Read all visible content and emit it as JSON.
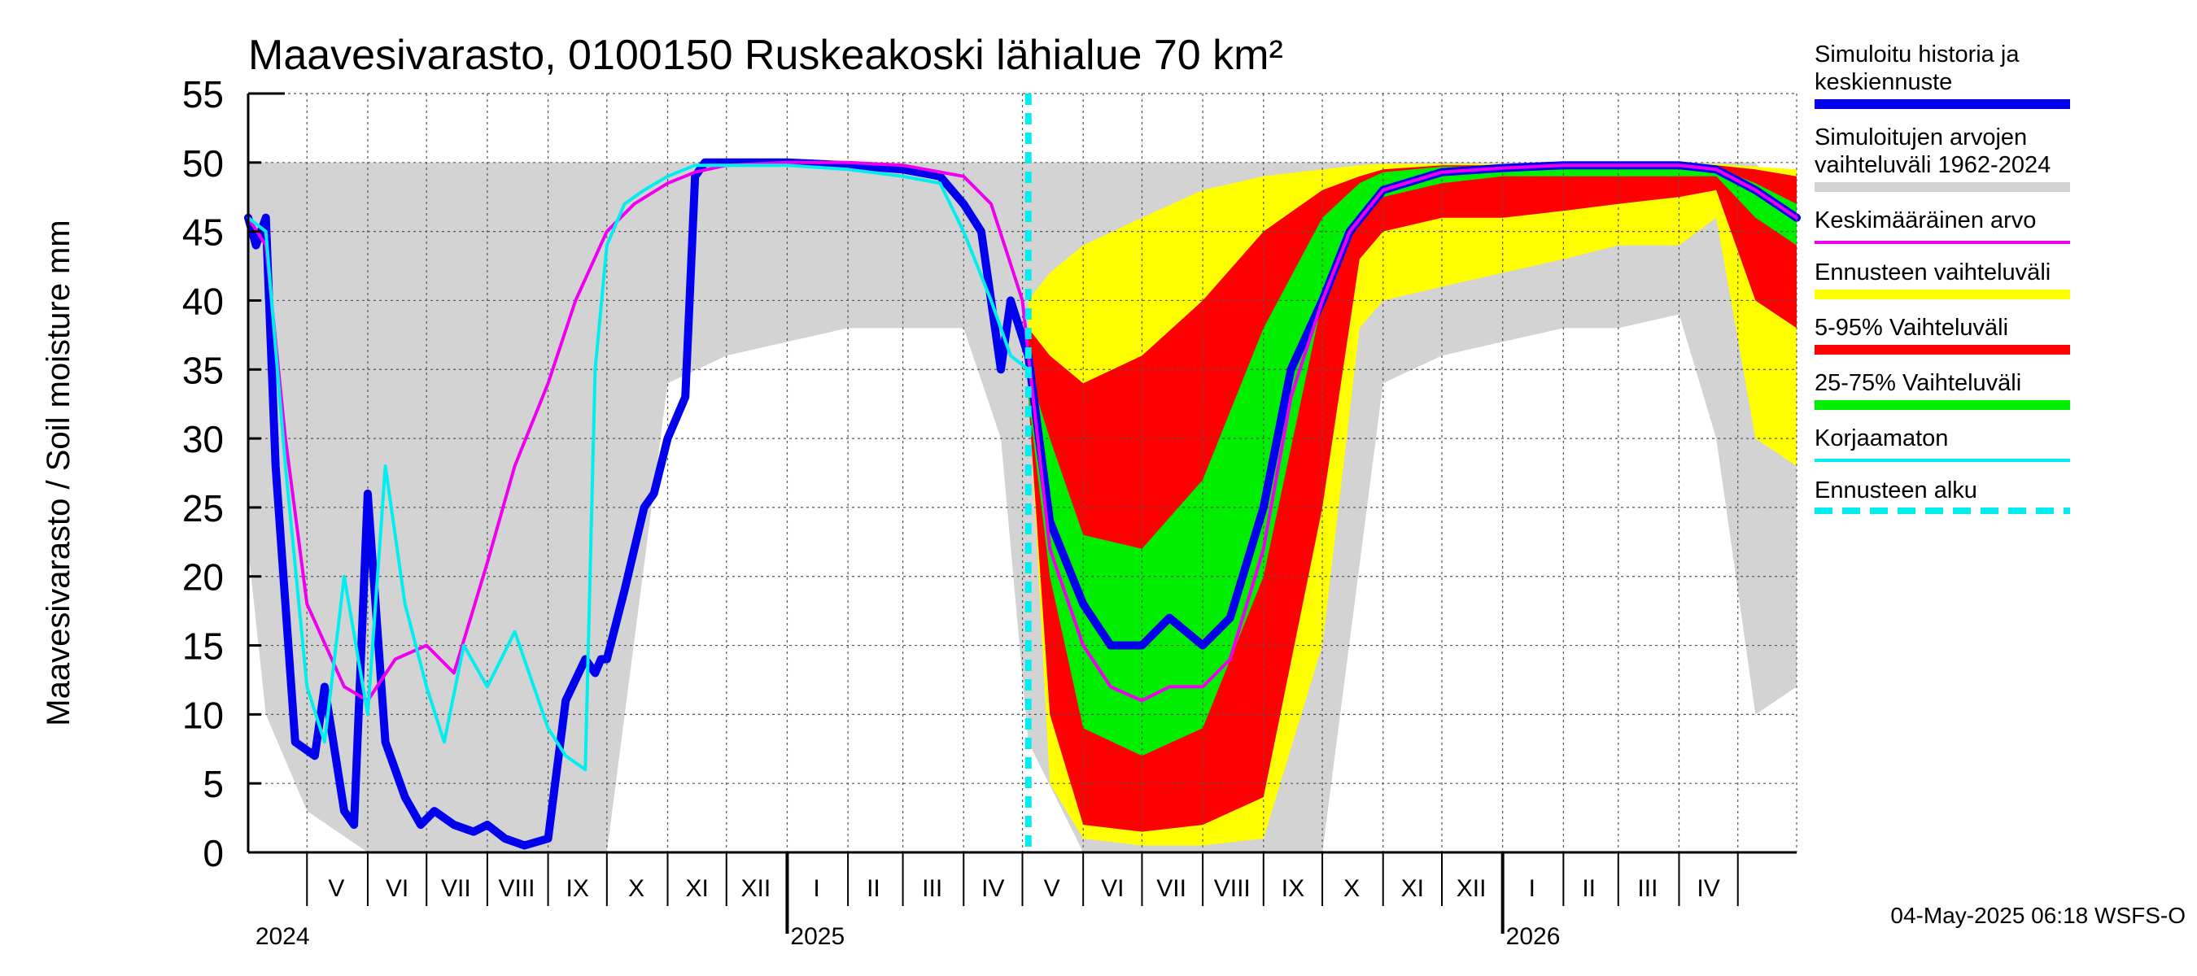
{
  "chart_data": {
    "type": "area",
    "title": "Maavesivarasto, 0100150 Ruskeakoski lähialue 70 km²",
    "ylabel": "Maavesivarasto / Soil moisture   mm",
    "xlabel": "",
    "ylim": [
      0,
      55
    ],
    "yticks": [
      0,
      5,
      10,
      15,
      20,
      25,
      30,
      35,
      40,
      45,
      50,
      55
    ],
    "x_range": [
      "2024-04-01",
      "2026-05-31"
    ],
    "month_labels": [
      "V",
      "VI",
      "VII",
      "VIII",
      "IX",
      "X",
      "XI",
      "XII",
      "I",
      "II",
      "III",
      "IV",
      "V",
      "VI",
      "VII",
      "VIII",
      "IX",
      "X",
      "XI",
      "XII",
      "I",
      "II",
      "III",
      "IV"
    ],
    "month_label_dates": [
      "2024-05-16",
      "2024-06-16",
      "2024-07-16",
      "2024-08-16",
      "2024-09-16",
      "2024-10-16",
      "2024-11-16",
      "2024-12-16",
      "2025-01-16",
      "2025-02-14",
      "2025-03-16",
      "2025-04-16",
      "2025-05-16",
      "2025-06-16",
      "2025-07-16",
      "2025-08-16",
      "2025-09-16",
      "2025-10-16",
      "2025-11-16",
      "2025-12-16",
      "2026-01-16",
      "2026-02-14",
      "2026-03-16",
      "2026-04-16"
    ],
    "year_labels": [
      {
        "label": "2024",
        "date": "2024-04-03"
      },
      {
        "label": "2025",
        "date": "2025-01-01"
      },
      {
        "label": "2026",
        "date": "2026-01-01"
      }
    ],
    "forecast_start": "2025-05-04",
    "grid": true,
    "legend_position": "right",
    "colors": {
      "history_range": "#d3d3d3",
      "simulated": "#0000ee",
      "mean": "#ee00ee",
      "forecast_range": "#ffff00",
      "p5_95": "#ff0000",
      "p25_75": "#00ee00",
      "uncorrected": "#00eeee",
      "forecast_start": "#00eeee"
    },
    "series": [
      {
        "name": "Simuloitujen arvojen vaihteluväli 1962-2024",
        "kind": "band",
        "x": [
          "2024-04-01",
          "2024-04-10",
          "2024-05-01",
          "2024-06-01",
          "2024-07-01",
          "2024-08-01",
          "2024-09-01",
          "2024-10-01",
          "2024-11-01",
          "2024-12-01",
          "2025-01-01",
          "2025-02-01",
          "2025-03-01",
          "2025-04-01",
          "2025-04-20",
          "2025-05-04",
          "2025-06-01",
          "2025-07-01",
          "2025-08-01",
          "2025-09-01",
          "2025-10-01",
          "2025-11-01",
          "2025-12-01",
          "2026-01-01",
          "2026-02-01",
          "2026-03-01",
          "2026-04-01",
          "2026-04-20",
          "2026-05-10",
          "2026-05-31"
        ],
        "low": [
          22,
          10,
          3,
          0,
          0,
          0,
          0,
          0,
          34,
          36,
          37,
          38,
          38,
          38,
          30,
          8,
          0,
          0,
          0,
          0,
          0,
          34,
          36,
          37,
          38,
          38,
          39,
          30,
          10,
          12
        ],
        "high": [
          50,
          50,
          50,
          50,
          50,
          50,
          50,
          50,
          50,
          50,
          50,
          50,
          50,
          50,
          50,
          50,
          50,
          50,
          50,
          50,
          50,
          50,
          50,
          50,
          50,
          50,
          50,
          50,
          50,
          46
        ]
      },
      {
        "name": "Ennusteen vaihteluväli",
        "kind": "band",
        "x": [
          "2025-05-04",
          "2025-05-15",
          "2025-06-01",
          "2025-07-01",
          "2025-08-01",
          "2025-09-01",
          "2025-10-01",
          "2025-10-20",
          "2025-11-01",
          "2025-12-01",
          "2026-01-01",
          "2026-02-01",
          "2026-03-01",
          "2026-04-01",
          "2026-04-20",
          "2026-05-10",
          "2026-05-31"
        ],
        "low": [
          34,
          5,
          1,
          0.5,
          0.5,
          1,
          15,
          38,
          40,
          41,
          42,
          43,
          44,
          44,
          46,
          30,
          28
        ],
        "high": [
          40,
          42,
          44,
          46,
          48,
          49,
          49.5,
          49.8,
          49.9,
          49.9,
          49.9,
          49.9,
          49.9,
          49.9,
          49.9,
          49.7,
          49.5
        ]
      },
      {
        "name": "5-95% Vaihteluväli",
        "kind": "band",
        "x": [
          "2025-05-04",
          "2025-05-15",
          "2025-06-01",
          "2025-07-01",
          "2025-08-01",
          "2025-09-01",
          "2025-10-01",
          "2025-10-20",
          "2025-11-01",
          "2025-12-01",
          "2026-01-01",
          "2026-02-01",
          "2026-03-01",
          "2026-04-01",
          "2026-04-20",
          "2026-05-10",
          "2026-05-31"
        ],
        "low": [
          33,
          10,
          2,
          1.5,
          2,
          4,
          25,
          43,
          45,
          46,
          46,
          46.5,
          47,
          47.5,
          48,
          40,
          38
        ],
        "high": [
          38,
          36,
          34,
          36,
          40,
          45,
          48,
          49,
          49.5,
          49.8,
          49.8,
          49.8,
          49.8,
          49.8,
          49.8,
          49.5,
          49
        ]
      },
      {
        "name": "25-75% Vaihteluväli",
        "kind": "band",
        "x": [
          "2025-05-04",
          "2025-05-15",
          "2025-06-01",
          "2025-07-01",
          "2025-08-01",
          "2025-09-01",
          "2025-10-01",
          "2025-10-20",
          "2025-11-01",
          "2025-12-01",
          "2026-01-01",
          "2026-02-01",
          "2026-03-01",
          "2026-04-01",
          "2026-04-20",
          "2026-05-10",
          "2026-05-31"
        ],
        "low": [
          33,
          20,
          9,
          7,
          9,
          20,
          40,
          46,
          47.5,
          48.5,
          49,
          49,
          49,
          49,
          49,
          46,
          44
        ],
        "high": [
          35,
          30,
          23,
          22,
          27,
          38,
          46,
          48.5,
          49.3,
          49.7,
          49.7,
          49.7,
          49.7,
          49.7,
          49.6,
          48.5,
          47
        ]
      },
      {
        "name": "Simuloitu historia ja keskiennuste",
        "kind": "line",
        "x": [
          "2024-04-01",
          "2024-04-05",
          "2024-04-10",
          "2024-04-15",
          "2024-04-25",
          "2024-05-05",
          "2024-05-10",
          "2024-05-20",
          "2024-05-25",
          "2024-06-01",
          "2024-06-10",
          "2024-06-20",
          "2024-06-28",
          "2024-07-05",
          "2024-07-15",
          "2024-07-25",
          "2024-08-01",
          "2024-08-10",
          "2024-08-20",
          "2024-09-01",
          "2024-09-10",
          "2024-09-20",
          "2024-09-25",
          "2024-09-28",
          "2024-10-01",
          "2024-10-10",
          "2024-10-20",
          "2024-10-25",
          "2024-11-01",
          "2024-11-10",
          "2024-11-15",
          "2024-11-20",
          "2024-11-25",
          "2024-12-01",
          "2025-01-01",
          "2025-02-01",
          "2025-03-01",
          "2025-03-20",
          "2025-04-01",
          "2025-04-10",
          "2025-04-15",
          "2025-04-20",
          "2025-04-25",
          "2025-05-04",
          "2025-05-15",
          "2025-06-01",
          "2025-06-15",
          "2025-07-01",
          "2025-07-15",
          "2025-08-01",
          "2025-08-15",
          "2025-09-01",
          "2025-09-15",
          "2025-10-01",
          "2025-10-15",
          "2025-11-01",
          "2025-12-01",
          "2026-01-01",
          "2026-02-01",
          "2026-03-01",
          "2026-04-01",
          "2026-04-20",
          "2026-05-10",
          "2026-05-31"
        ],
        "y": [
          46,
          44,
          46,
          28,
          8,
          7,
          12,
          3,
          2,
          26,
          8,
          4,
          2,
          3,
          2,
          1.5,
          2,
          1,
          0.5,
          1,
          11,
          14,
          13,
          14,
          14,
          19,
          25,
          26,
          30,
          33,
          49,
          50,
          50,
          50,
          50,
          49.8,
          49.5,
          49,
          47,
          45,
          40,
          35,
          40,
          36,
          24,
          18,
          15,
          15,
          17,
          15,
          17,
          25,
          35,
          40,
          45,
          48,
          49.3,
          49.6,
          49.8,
          49.8,
          49.8,
          49.5,
          48,
          46
        ]
      },
      {
        "name": "Keskimääräinen arvo",
        "kind": "line",
        "x": [
          "2024-04-01",
          "2024-04-10",
          "2024-04-20",
          "2024-05-01",
          "2024-05-20",
          "2024-06-01",
          "2024-06-15",
          "2024-07-01",
          "2024-07-15",
          "2024-08-01",
          "2024-08-15",
          "2024-09-01",
          "2024-09-15",
          "2024-10-01",
          "2024-10-15",
          "2024-11-01",
          "2024-11-15",
          "2024-12-01",
          "2025-01-01",
          "2025-02-01",
          "2025-03-01",
          "2025-04-01",
          "2025-04-15",
          "2025-05-01",
          "2025-05-15",
          "2025-06-01",
          "2025-06-15",
          "2025-07-01",
          "2025-07-15",
          "2025-08-01",
          "2025-08-15",
          "2025-09-01",
          "2025-09-15",
          "2025-10-01",
          "2025-10-15",
          "2025-11-01",
          "2025-12-01",
          "2026-01-01",
          "2026-02-01",
          "2026-03-01",
          "2026-04-01",
          "2026-04-20",
          "2026-05-10",
          "2026-05-31"
        ],
        "y": [
          46,
          44,
          30,
          18,
          12,
          11,
          14,
          15,
          13,
          21,
          28,
          34,
          40,
          45,
          47,
          48.5,
          49.3,
          49.8,
          50,
          50,
          49.8,
          49,
          47,
          40,
          22,
          15,
          12,
          11,
          12,
          12,
          14,
          22,
          33,
          40,
          45,
          48,
          49.3,
          49.6,
          49.8,
          49.8,
          49.8,
          49.5,
          48,
          46
        ]
      },
      {
        "name": "Korjaamaton",
        "kind": "line",
        "x": [
          "2024-04-01",
          "2024-04-10",
          "2024-04-20",
          "2024-05-01",
          "2024-05-10",
          "2024-05-20",
          "2024-06-01",
          "2024-06-10",
          "2024-06-20",
          "2024-07-01",
          "2024-07-10",
          "2024-07-20",
          "2024-08-01",
          "2024-08-15",
          "2024-09-01",
          "2024-09-10",
          "2024-09-20",
          "2024-09-25",
          "2024-10-01",
          "2024-10-10",
          "2024-10-20",
          "2024-11-01",
          "2024-11-15",
          "2024-12-01",
          "2025-01-01",
          "2025-02-01",
          "2025-03-01",
          "2025-03-20",
          "2025-04-01",
          "2025-04-15",
          "2025-04-25",
          "2025-05-04"
        ],
        "y": [
          46,
          45,
          28,
          12,
          8,
          20,
          10,
          28,
          18,
          12,
          8,
          15,
          12,
          16,
          9,
          7,
          6,
          35,
          44,
          47,
          48,
          49,
          49.8,
          49.8,
          49.8,
          49.5,
          49,
          48.5,
          45,
          40,
          36,
          35
        ]
      }
    ]
  },
  "legend": [
    {
      "label": "Simuloitu historia ja\nkeskiennuste",
      "color": "#0000ee",
      "style": "solid",
      "thickness": 12
    },
    {
      "label": "Simuloitujen arvojen\nvaihteluväli 1962-2024",
      "color": "#d3d3d3",
      "style": "solid",
      "thickness": 12
    },
    {
      "label": "Keskimääräinen arvo",
      "color": "#ee00ee",
      "style": "solid",
      "thickness": 4
    },
    {
      "label": "Ennusteen vaihteluväli",
      "color": "#ffff00",
      "style": "solid",
      "thickness": 12
    },
    {
      "label": "5-95% Vaihteluväli",
      "color": "#ff0000",
      "style": "solid",
      "thickness": 12
    },
    {
      "label": "25-75% Vaihteluväli",
      "color": "#00ee00",
      "style": "solid",
      "thickness": 12
    },
    {
      "label": "Korjaamaton",
      "color": "#00eeee",
      "style": "solid",
      "thickness": 4
    },
    {
      "label": "Ennusteen alku",
      "color": "#00eeee",
      "style": "dashed",
      "thickness": 8
    }
  ],
  "footer": {
    "timestamp": "04-May-2025 06:18 WSFS-O"
  }
}
